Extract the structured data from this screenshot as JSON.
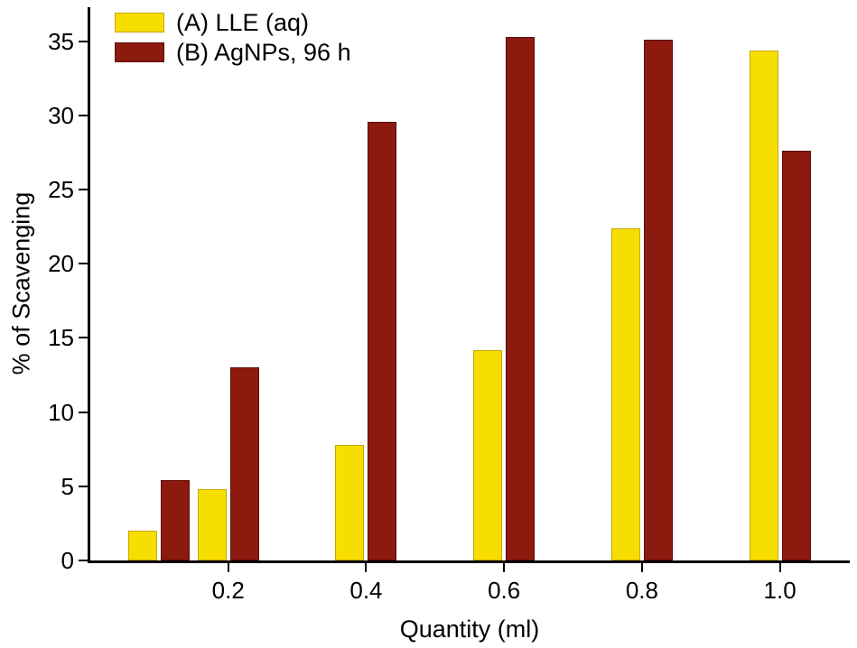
{
  "chart_data": {
    "type": "bar",
    "title": "",
    "xlabel": "Quantity (ml)",
    "ylabel": "% of Scavenging",
    "x_domain": [
      0,
      1.1
    ],
    "y_domain": [
      0,
      37.3
    ],
    "x_ticks": [
      0.2,
      0.4,
      0.6,
      0.8,
      1.0
    ],
    "x_tick_labels": [
      "0.2",
      "0.4",
      "0.6",
      "0.8",
      "1.0"
    ],
    "y_ticks": [
      0,
      5,
      10,
      15,
      20,
      25,
      30,
      35
    ],
    "group_x": [
      0.1,
      0.2,
      0.4,
      0.6,
      0.8,
      1.0
    ],
    "series": [
      {
        "name": "(A) LLE (aq)",
        "color": "#f6de00",
        "border": "#c7a600",
        "values": [
          2.0,
          4.8,
          7.8,
          14.2,
          22.4,
          34.4
        ]
      },
      {
        "name": "(B) AgNPs, 96 h",
        "color": "#8d1a0e",
        "border": "#570e06",
        "values": [
          5.4,
          13.0,
          29.6,
          35.3,
          35.1,
          27.6
        ]
      }
    ],
    "legend_position": "top-left",
    "grid": false
  }
}
